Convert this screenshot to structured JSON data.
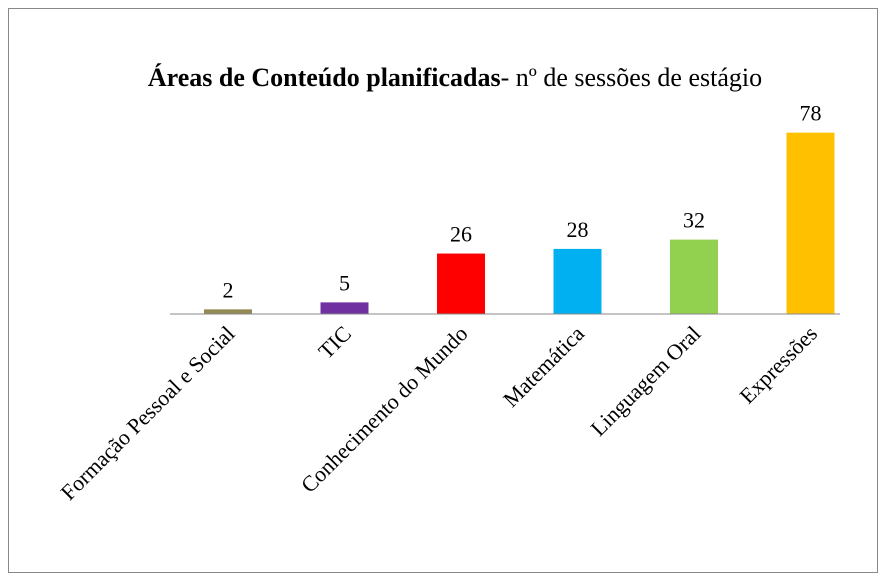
{
  "chart_data": {
    "type": "bar",
    "title": [
      "Áreas de Conteúdo planificadas",
      "- nº de sessões de estágio"
    ],
    "categories": [
      "Formação Pessoal e Social",
      "TIC",
      "Conhecimento do Mundo",
      "Matemática",
      "Linguagem Oral",
      "Expressões"
    ],
    "values": [
      2,
      5,
      26,
      28,
      32,
      78
    ],
    "colors": [
      "#948a54",
      "#7030a0",
      "#ff0000",
      "#00b0f0",
      "#92d050",
      "#ffc000"
    ],
    "ylim": [
      0,
      80
    ]
  }
}
